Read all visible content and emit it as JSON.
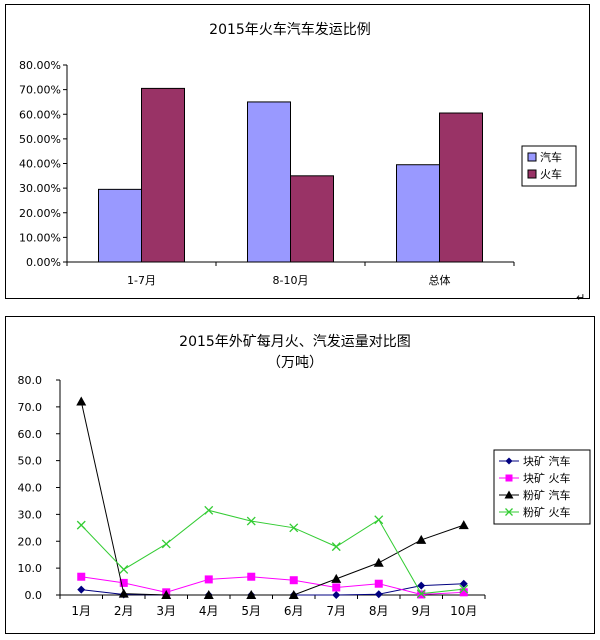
{
  "return_mark": "↵",
  "chart_data": [
    {
      "type": "bar",
      "title": "2015年火车汽车发运比例",
      "categories": [
        "1-7月",
        "8-10月",
        "总体"
      ],
      "series": [
        {
          "name": "汽车",
          "values": [
            0.295,
            0.65,
            0.395
          ],
          "color": "#9999FF"
        },
        {
          "name": "火车",
          "values": [
            0.705,
            0.35,
            0.605
          ],
          "color": "#993366"
        }
      ],
      "ylim": [
        0,
        0.8
      ],
      "yticks": [
        "0.00%",
        "10.00%",
        "20.00%",
        "30.00%",
        "40.00%",
        "50.00%",
        "60.00%",
        "70.00%",
        "80.00%"
      ],
      "legend_position": "right",
      "grid": false
    },
    {
      "type": "line",
      "title": "2015年外矿每月火、汽发运量对比图",
      "subtitle": "（万吨）",
      "categories": [
        "1月",
        "2月",
        "3月",
        "4月",
        "5月",
        "6月",
        "7月",
        "8月",
        "9月",
        "10月"
      ],
      "series": [
        {
          "name": "块矿 汽车",
          "values": [
            2.0,
            0.2,
            0.0,
            0.0,
            0.0,
            0.0,
            0.0,
            0.3,
            3.5,
            4.2
          ],
          "color": "#000080",
          "marker": "diamond"
        },
        {
          "name": "块矿 火车",
          "values": [
            6.8,
            4.5,
            1.0,
            5.8,
            6.8,
            5.5,
            2.8,
            4.2,
            0.2,
            1.0
          ],
          "color": "#FF00FF",
          "marker": "square"
        },
        {
          "name": "粉矿 汽车",
          "values": [
            72.0,
            0.5,
            0.0,
            0.0,
            0.0,
            0.0,
            6.0,
            12.0,
            20.5,
            26.0
          ],
          "color": "#000000",
          "marker": "triangle"
        },
        {
          "name": "粉矿 火车",
          "values": [
            26.0,
            9.5,
            19.0,
            31.5,
            27.5,
            25.0,
            18.0,
            28.0,
            0.5,
            2.2
          ],
          "color": "#33CC33",
          "marker": "x"
        }
      ],
      "ylim": [
        0,
        80
      ],
      "yticks": [
        "0.0",
        "10.0",
        "20.0",
        "30.0",
        "40.0",
        "50.0",
        "60.0",
        "70.0",
        "80.0"
      ],
      "legend_position": "right",
      "grid": false
    }
  ]
}
